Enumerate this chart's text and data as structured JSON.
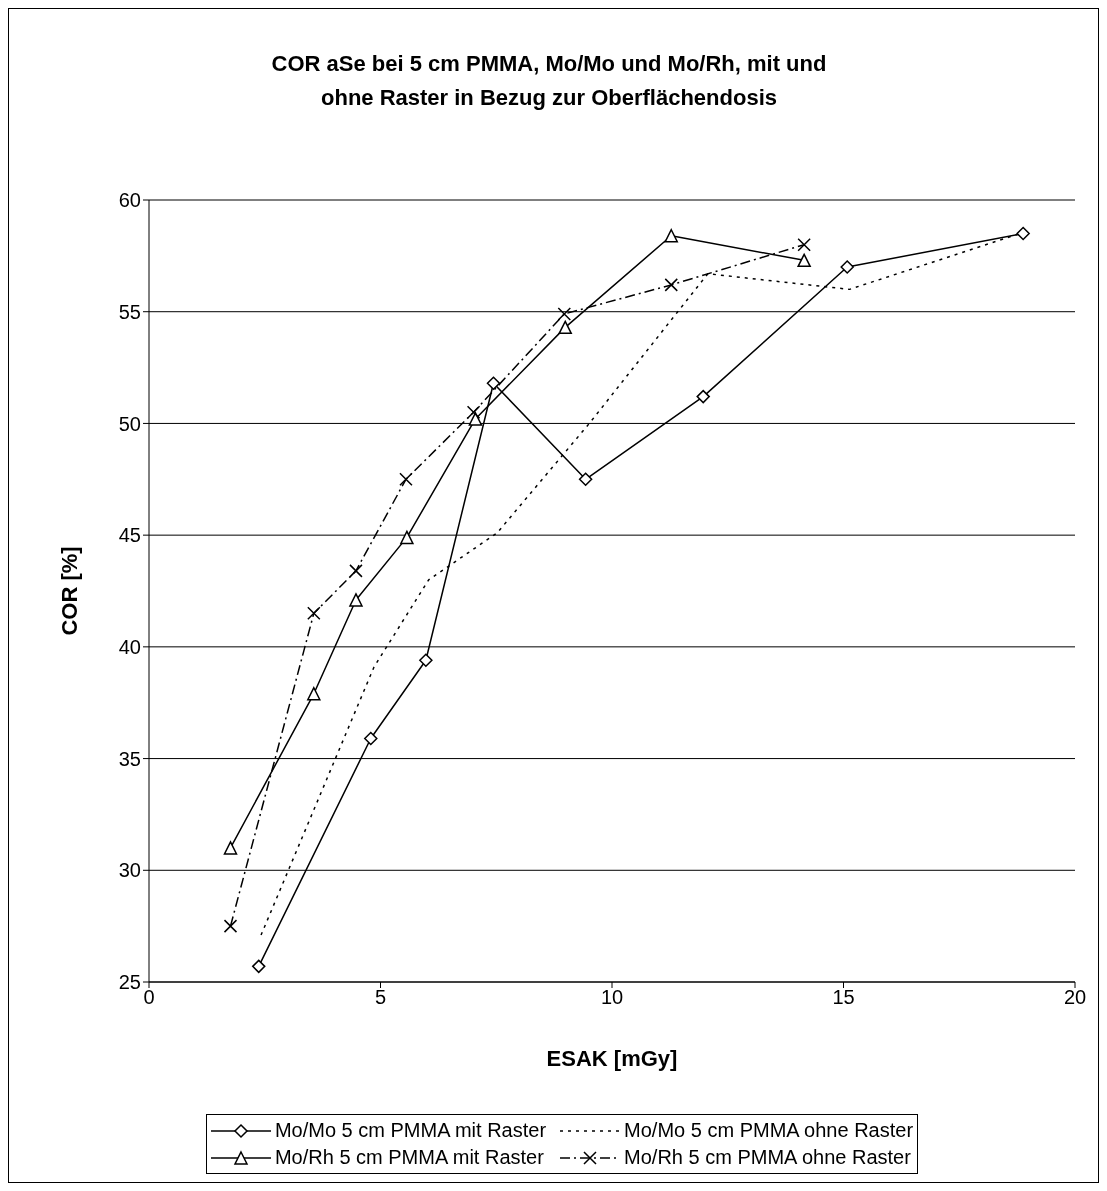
{
  "chart_data": {
    "type": "line",
    "title": "COR aSe bei 5 cm PMMA, Mo/Mo und Mo/Rh, mit und ohne Raster in Bezug zur Oberflächendosis",
    "xlabel": "ESAK [mGy]",
    "ylabel": "COR [%]",
    "xlim": [
      0,
      20
    ],
    "xticks": [
      0,
      5,
      10,
      15,
      20
    ],
    "ylim": [
      25,
      60
    ],
    "yticks": [
      25,
      30,
      35,
      40,
      45,
      50,
      55,
      60
    ],
    "grid": "y",
    "legend": "bottom",
    "series": [
      {
        "name": "Mo/Mo 5 cm PMMA mit Raster",
        "color": "#000000",
        "marker": "diamond",
        "line_style": "solid",
        "x": [
          2.37,
          4.79,
          5.98,
          7.44,
          9.43,
          11.97,
          15.08,
          18.88
        ],
        "values": [
          25.7,
          35.9,
          39.4,
          51.8,
          47.5,
          51.2,
          57.0,
          58.5
        ]
      },
      {
        "name": "Mo/Mo 5 cm PMMA ohne Raster",
        "color": "#000000",
        "marker": "none",
        "line_style": "dotted",
        "x": [
          2.42,
          4.86,
          6.04,
          7.52,
          9.51,
          12.07,
          15.13,
          18.96
        ],
        "values": [
          27.1,
          39.1,
          43.0,
          45.1,
          50.0,
          56.7,
          56.0,
          58.6
        ]
      },
      {
        "name": "Mo/Rh 5 cm PMMA mit Raster",
        "color": "#000000",
        "marker": "triangle",
        "line_style": "solid",
        "x": [
          1.76,
          3.56,
          4.47,
          5.57,
          7.05,
          8.99,
          11.28,
          14.15
        ],
        "values": [
          31.0,
          37.9,
          42.1,
          44.9,
          50.2,
          54.3,
          58.4,
          57.3
        ]
      },
      {
        "name": "Mo/Rh 5 cm PMMA ohne Raster",
        "color": "#000000",
        "marker": "cross",
        "line_style": "dashed",
        "x": [
          1.76,
          3.56,
          4.47,
          5.55,
          7.01,
          8.97,
          11.28,
          14.15
        ],
        "values": [
          27.5,
          41.5,
          43.4,
          47.5,
          50.5,
          54.9,
          56.2,
          58.0
        ]
      }
    ]
  }
}
